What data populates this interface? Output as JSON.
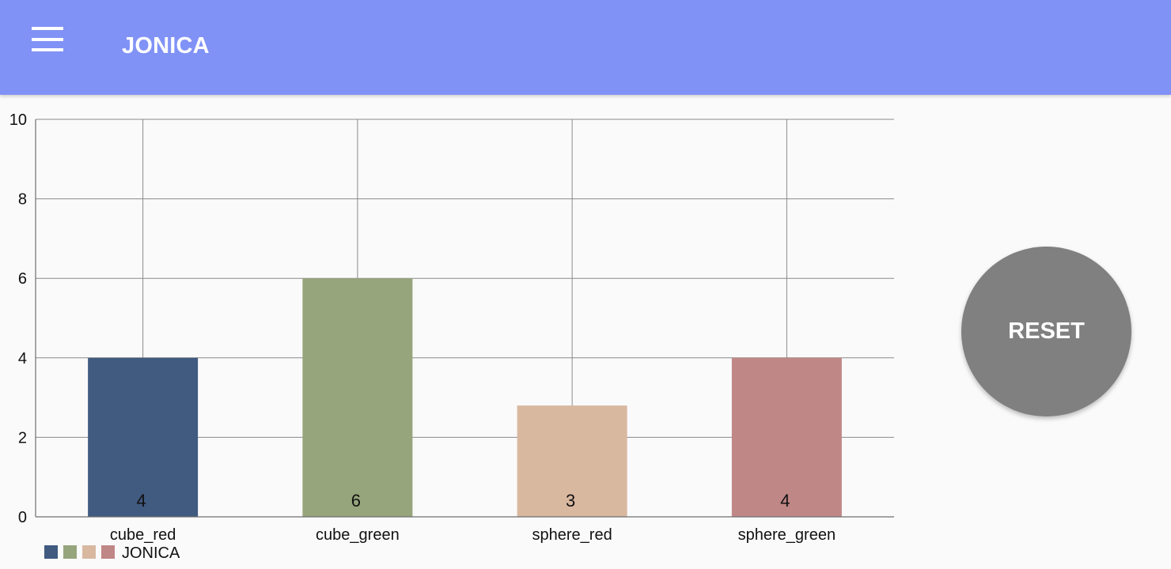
{
  "app": {
    "title": "JONICA",
    "menu_icon": "hamburger-menu-icon",
    "toolbar_color": "#8192f6"
  },
  "reset_button": {
    "label": "RESET",
    "color": "#808080"
  },
  "chart_data": {
    "type": "bar",
    "categories": [
      "cube_red",
      "cube_green",
      "sphere_red",
      "sphere_green"
    ],
    "values": [
      4,
      6,
      2.8,
      4
    ],
    "value_labels": [
      "4",
      "6",
      "3",
      "4"
    ],
    "colors": [
      "#405a80",
      "#97a57c",
      "#d9b8a0",
      "#bf8786"
    ],
    "ylim": [
      0,
      10
    ],
    "yticks": [
      0,
      2,
      4,
      6,
      8,
      10
    ],
    "grid": true,
    "legend": {
      "label": "JONICA",
      "placement": "bottom-left"
    }
  }
}
